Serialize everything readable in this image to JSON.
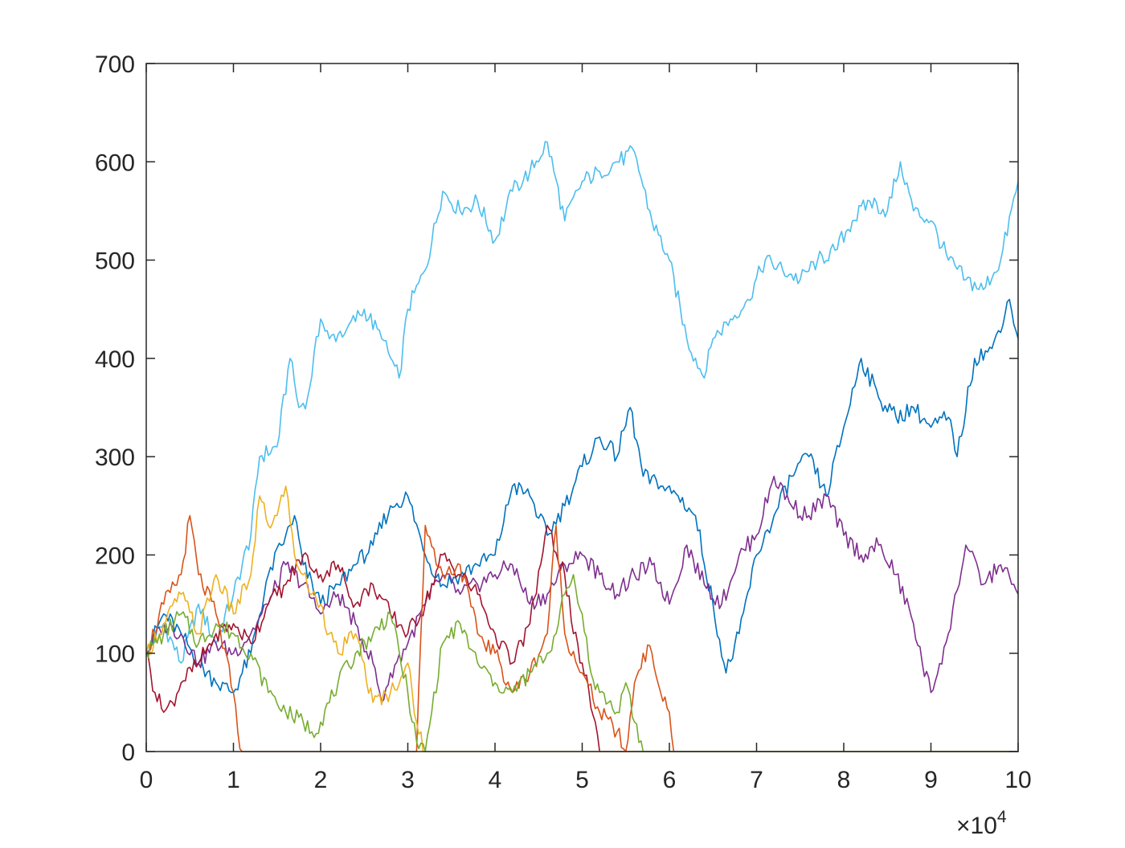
{
  "chart_data": {
    "type": "line",
    "title": "",
    "xlabel": "",
    "ylabel": "",
    "xlim": [
      0,
      100000
    ],
    "ylim": [
      0,
      700
    ],
    "x_exponent_label": {
      "base": "×10",
      "exponent": "4"
    },
    "x_ticks": [
      {
        "value": 0,
        "label": "0"
      },
      {
        "value": 10000,
        "label": "1"
      },
      {
        "value": 20000,
        "label": "2"
      },
      {
        "value": 30000,
        "label": "3"
      },
      {
        "value": 40000,
        "label": "4"
      },
      {
        "value": 50000,
        "label": "5"
      },
      {
        "value": 60000,
        "label": "6"
      },
      {
        "value": 70000,
        "label": "7"
      },
      {
        "value": 80000,
        "label": "8"
      },
      {
        "value": 90000,
        "label": "9"
      },
      {
        "value": 100000,
        "label": "10"
      }
    ],
    "y_ticks": [
      {
        "value": 0,
        "label": "0"
      },
      {
        "value": 100,
        "label": "100"
      },
      {
        "value": 200,
        "label": "200"
      },
      {
        "value": 300,
        "label": "300"
      },
      {
        "value": 400,
        "label": "400"
      },
      {
        "value": 500,
        "label": "500"
      },
      {
        "value": 600,
        "label": "600"
      },
      {
        "value": 700,
        "label": "700"
      }
    ],
    "grid": false,
    "legend": "none",
    "series": [
      {
        "color": "#4DBEEE",
        "x": [
          0,
          2000,
          4000,
          6000,
          8000,
          10000,
          12000,
          13000,
          15000,
          16500,
          17500,
          18500,
          20000,
          21000,
          23000,
          25000,
          27000,
          29000,
          30000,
          32000,
          34000,
          36000,
          38000,
          40000,
          42000,
          44000,
          46000,
          48000,
          50000,
          52000,
          54000,
          56000,
          58000,
          60000,
          62000,
          64000,
          65000,
          67000,
          69000,
          71000,
          73000,
          75000,
          77000,
          79000,
          81000,
          83000,
          85000,
          86500,
          88000,
          90000,
          92000,
          94000,
          96000,
          98000,
          100000
        ],
        "y": [
          100,
          130,
          90,
          150,
          110,
          160,
          220,
          300,
          310,
          400,
          350,
          360,
          440,
          420,
          430,
          450,
          420,
          380,
          450,
          490,
          570,
          550,
          560,
          520,
          570,
          590,
          620,
          540,
          580,
          590,
          600,
          610,
          540,
          500,
          420,
          380,
          420,
          440,
          460,
          500,
          490,
          480,
          500,
          510,
          540,
          560,
          550,
          600,
          550,
          540,
          500,
          480,
          470,
          500,
          580
        ]
      },
      {
        "color": "#0072BD",
        "x": [
          0,
          2000,
          4000,
          6000,
          8000,
          10000,
          12000,
          14000,
          16000,
          17000,
          18000,
          20000,
          22000,
          24000,
          26000,
          28000,
          30000,
          32000,
          34000,
          36000,
          38000,
          40000,
          42000,
          44000,
          46000,
          48000,
          50000,
          52000,
          54000,
          55500,
          57000,
          59000,
          61000,
          63000,
          65000,
          66500,
          68000,
          70000,
          72000,
          74000,
          76000,
          78000,
          80000,
          82000,
          84000,
          86000,
          88000,
          90000,
          92000,
          93000,
          95000,
          97000,
          99000,
          100000
        ],
        "y": [
          100,
          140,
          120,
          90,
          70,
          60,
          100,
          180,
          220,
          240,
          190,
          150,
          170,
          190,
          210,
          250,
          260,
          200,
          170,
          180,
          190,
          200,
          270,
          260,
          220,
          250,
          290,
          320,
          300,
          350,
          280,
          270,
          260,
          240,
          150,
          80,
          120,
          200,
          240,
          280,
          300,
          260,
          330,
          400,
          360,
          340,
          350,
          330,
          340,
          300,
          400,
          410,
          460,
          420
        ]
      },
      {
        "color": "#7E2F8E",
        "x": [
          0,
          2000,
          4000,
          6000,
          8000,
          10000,
          12000,
          14000,
          16000,
          18000,
          20000,
          22000,
          24000,
          26000,
          27000,
          28000,
          30000,
          32000,
          34000,
          36000,
          38000,
          40000,
          42000,
          44000,
          46000,
          48000,
          50000,
          52000,
          54000,
          56000,
          58000,
          60000,
          62000,
          64000,
          66000,
          68000,
          70000,
          72000,
          74000,
          76000,
          78000,
          80000,
          82000,
          84000,
          86000,
          88000,
          89000,
          90000,
          92000,
          94000,
          96000,
          98000,
          100000
        ],
        "y": [
          100,
          130,
          120,
          90,
          110,
          100,
          120,
          150,
          190,
          170,
          140,
          160,
          130,
          90,
          50,
          80,
          110,
          150,
          180,
          160,
          170,
          180,
          190,
          150,
          160,
          190,
          200,
          180,
          160,
          180,
          190,
          150,
          210,
          170,
          150,
          200,
          220,
          280,
          250,
          240,
          260,
          220,
          200,
          210,
          180,
          130,
          90,
          60,
          120,
          210,
          170,
          190,
          160
        ]
      },
      {
        "color": "#A2142F",
        "x": [
          0,
          1000,
          2000,
          3000,
          4000,
          6000,
          8000,
          10000,
          12000,
          14000,
          16000,
          18000,
          20000,
          22000,
          24000,
          26000,
          28000,
          30000,
          32000,
          34000,
          36000,
          38000,
          40000,
          42000,
          44000,
          46000,
          48000,
          49000,
          50000,
          51500,
          52000,
          100000
        ],
        "y": [
          100,
          60,
          40,
          50,
          70,
          90,
          120,
          130,
          110,
          150,
          170,
          200,
          180,
          190,
          150,
          170,
          140,
          120,
          150,
          200,
          180,
          160,
          120,
          90,
          130,
          230,
          180,
          120,
          90,
          30,
          0,
          0
        ]
      },
      {
        "color": "#D95319",
        "x": [
          0,
          2000,
          4000,
          5000,
          6000,
          8000,
          10000,
          10500,
          11000,
          12000,
          14000,
          16000,
          18000,
          20000,
          22000,
          24000,
          26000,
          28000,
          30000,
          31000,
          32000,
          34000,
          36000,
          38000,
          40000,
          42000,
          44000,
          46000,
          47000,
          48000,
          50000,
          52000,
          54000,
          55000,
          56000,
          57000,
          58000,
          59000,
          60000,
          60500,
          100000
        ],
        "y": [
          100,
          150,
          180,
          240,
          180,
          140,
          60,
          20,
          0,
          0,
          0,
          0,
          0,
          0,
          0,
          0,
          0,
          0,
          0,
          0,
          230,
          180,
          190,
          120,
          100,
          60,
          80,
          120,
          230,
          120,
          80,
          40,
          20,
          0,
          70,
          100,
          100,
          60,
          40,
          0,
          0
        ]
      },
      {
        "color": "#EDB120",
        "x": [
          0,
          2000,
          4000,
          6000,
          8000,
          10000,
          12000,
          13000,
          14000,
          15000,
          16000,
          17000,
          18000,
          19000,
          20000,
          21000,
          22000,
          23000,
          24000,
          26000,
          28000,
          30000,
          31000,
          32000,
          100000
        ],
        "y": [
          100,
          130,
          160,
          120,
          180,
          140,
          180,
          260,
          230,
          240,
          270,
          200,
          180,
          160,
          150,
          120,
          100,
          110,
          120,
          50,
          60,
          90,
          30,
          0,
          0
        ]
      },
      {
        "color": "#77AC30",
        "x": [
          0,
          2000,
          4000,
          6000,
          8000,
          10000,
          12000,
          14000,
          16000,
          18000,
          19000,
          20000,
          22000,
          24000,
          26000,
          28000,
          30000,
          31000,
          32000,
          34000,
          36000,
          38000,
          40000,
          42000,
          44000,
          46000,
          47000,
          48000,
          49000,
          50000,
          51000,
          52000,
          53000,
          54000,
          55000,
          56000,
          57000,
          100000
        ],
        "y": [
          100,
          120,
          140,
          110,
          130,
          120,
          100,
          60,
          40,
          30,
          20,
          30,
          70,
          100,
          120,
          140,
          60,
          10,
          0,
          110,
          130,
          90,
          70,
          60,
          80,
          100,
          120,
          160,
          180,
          140,
          80,
          60,
          50,
          40,
          70,
          30,
          0,
          0
        ]
      }
    ]
  }
}
